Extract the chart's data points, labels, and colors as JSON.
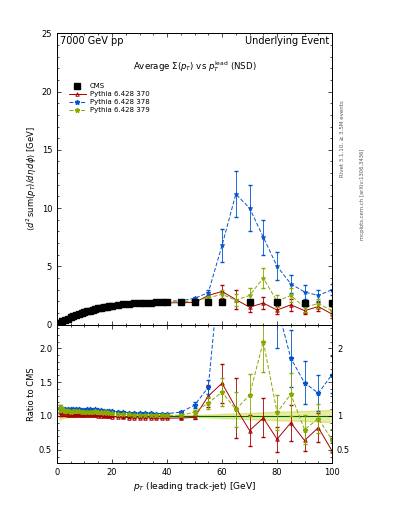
{
  "title_left": "7000 GeV pp",
  "title_right": "Underlying Event",
  "plot_title": "Average $\\Sigma(p_T)$ vs $p_T^{\\mathrm{lead}}$ (NSD)",
  "ylabel_main": "$\\langle d^2\\,\\mathrm{sum}(p_T)/d\\eta\\,d\\phi\\rangle$ [GeV]",
  "ylabel_ratio": "Ratio to CMS",
  "xlabel": "$p_T$ (leading track-jet) [GeV]",
  "rivet_label": "Rivet 3.1.10, ≥ 3.5M events",
  "arxiv_label": "mcplots.cern.ch [arXiv:1306.3436]",
  "ylim_main": [
    0,
    25
  ],
  "ylim_ratio": [
    0.3,
    2.35
  ],
  "yticks_main": [
    0,
    5,
    10,
    15,
    20,
    25
  ],
  "yticks_ratio": [
    0.5,
    1.0,
    1.5,
    2.0
  ],
  "xlim": [
    0,
    100
  ],
  "cms_color": "#000000",
  "py370_color": "#aa0000",
  "py378_color": "#0055cc",
  "py379_color": "#88aa00",
  "band_color": "#bbcc00",
  "band_alpha": 0.35,
  "cms_x": [
    1,
    2,
    3,
    4,
    5,
    6,
    7,
    8,
    9,
    10,
    11,
    12,
    13,
    14,
    15,
    16,
    17,
    18,
    19,
    20,
    22,
    24,
    26,
    28,
    30,
    32,
    34,
    36,
    38,
    40,
    45,
    50,
    55,
    60,
    70,
    80,
    90,
    100
  ],
  "cms_y": [
    0.18,
    0.3,
    0.41,
    0.52,
    0.62,
    0.72,
    0.81,
    0.9,
    0.99,
    1.07,
    1.14,
    1.21,
    1.27,
    1.33,
    1.39,
    1.44,
    1.49,
    1.53,
    1.57,
    1.61,
    1.67,
    1.73,
    1.78,
    1.82,
    1.85,
    1.87,
    1.89,
    1.91,
    1.92,
    1.93,
    1.94,
    1.94,
    1.93,
    1.92,
    1.91,
    1.9,
    1.88,
    1.86
  ],
  "cms_yerr": [
    0.01,
    0.01,
    0.01,
    0.01,
    0.01,
    0.01,
    0.01,
    0.01,
    0.01,
    0.01,
    0.01,
    0.01,
    0.01,
    0.01,
    0.01,
    0.01,
    0.01,
    0.01,
    0.01,
    0.01,
    0.01,
    0.01,
    0.01,
    0.01,
    0.01,
    0.01,
    0.01,
    0.01,
    0.01,
    0.01,
    0.02,
    0.03,
    0.04,
    0.06,
    0.09,
    0.12,
    0.14,
    0.17
  ],
  "py370_x": [
    1,
    2,
    3,
    4,
    5,
    6,
    7,
    8,
    9,
    10,
    11,
    12,
    13,
    14,
    15,
    16,
    17,
    18,
    19,
    20,
    22,
    24,
    26,
    28,
    30,
    32,
    34,
    36,
    38,
    40,
    45,
    50,
    55,
    60,
    65,
    70,
    75,
    80,
    85,
    90,
    95,
    100
  ],
  "py370_y": [
    0.19,
    0.31,
    0.42,
    0.53,
    0.63,
    0.73,
    0.82,
    0.91,
    1.0,
    1.08,
    1.15,
    1.22,
    1.28,
    1.34,
    1.39,
    1.44,
    1.48,
    1.52,
    1.56,
    1.59,
    1.65,
    1.7,
    1.74,
    1.77,
    1.8,
    1.82,
    1.84,
    1.85,
    1.86,
    1.87,
    1.88,
    1.9,
    2.5,
    2.85,
    2.15,
    1.5,
    1.85,
    1.25,
    1.7,
    1.2,
    1.55,
    0.9
  ],
  "py370_yerr": [
    0.01,
    0.01,
    0.01,
    0.01,
    0.01,
    0.01,
    0.01,
    0.01,
    0.01,
    0.01,
    0.01,
    0.01,
    0.01,
    0.01,
    0.01,
    0.01,
    0.01,
    0.01,
    0.01,
    0.01,
    0.01,
    0.01,
    0.01,
    0.01,
    0.01,
    0.01,
    0.01,
    0.01,
    0.01,
    0.01,
    0.03,
    0.06,
    0.3,
    0.55,
    0.85,
    0.45,
    0.55,
    0.35,
    0.5,
    0.3,
    0.4,
    0.35
  ],
  "py378_x": [
    1,
    2,
    3,
    4,
    5,
    6,
    7,
    8,
    9,
    10,
    11,
    12,
    13,
    14,
    15,
    16,
    17,
    18,
    19,
    20,
    22,
    24,
    26,
    28,
    30,
    32,
    34,
    36,
    38,
    40,
    45,
    50,
    55,
    60,
    65,
    70,
    75,
    80,
    85,
    90,
    95,
    100
  ],
  "py378_y": [
    0.2,
    0.33,
    0.45,
    0.57,
    0.68,
    0.79,
    0.89,
    0.99,
    1.08,
    1.17,
    1.25,
    1.33,
    1.39,
    1.46,
    1.51,
    1.56,
    1.61,
    1.65,
    1.69,
    1.72,
    1.78,
    1.83,
    1.87,
    1.9,
    1.93,
    1.95,
    1.97,
    1.98,
    1.99,
    2.0,
    2.05,
    2.25,
    2.75,
    6.8,
    11.2,
    10.0,
    7.5,
    5.0,
    3.5,
    2.8,
    2.5,
    3.0
  ],
  "py378_yerr": [
    0.01,
    0.01,
    0.01,
    0.01,
    0.01,
    0.01,
    0.01,
    0.01,
    0.01,
    0.01,
    0.01,
    0.01,
    0.01,
    0.01,
    0.01,
    0.01,
    0.01,
    0.01,
    0.01,
    0.01,
    0.01,
    0.01,
    0.01,
    0.01,
    0.01,
    0.01,
    0.01,
    0.01,
    0.01,
    0.01,
    0.03,
    0.08,
    0.2,
    1.4,
    2.0,
    2.0,
    1.5,
    1.2,
    0.8,
    0.6,
    0.5,
    0.5
  ],
  "py379_x": [
    1,
    2,
    3,
    4,
    5,
    6,
    7,
    8,
    9,
    10,
    11,
    12,
    13,
    14,
    15,
    16,
    17,
    18,
    19,
    20,
    22,
    24,
    26,
    28,
    30,
    32,
    34,
    36,
    38,
    40,
    45,
    50,
    55,
    60,
    65,
    70,
    75,
    80,
    85,
    90,
    95,
    100
  ],
  "py379_y": [
    0.2,
    0.33,
    0.44,
    0.56,
    0.66,
    0.77,
    0.87,
    0.96,
    1.05,
    1.14,
    1.21,
    1.29,
    1.35,
    1.42,
    1.47,
    1.52,
    1.57,
    1.61,
    1.64,
    1.67,
    1.73,
    1.78,
    1.82,
    1.85,
    1.88,
    1.9,
    1.92,
    1.93,
    1.94,
    1.95,
    1.96,
    2.05,
    2.3,
    2.6,
    2.1,
    2.5,
    4.0,
    2.0,
    2.5,
    1.5,
    1.8,
    1.2
  ],
  "py379_yerr": [
    0.01,
    0.01,
    0.01,
    0.01,
    0.01,
    0.01,
    0.01,
    0.01,
    0.01,
    0.01,
    0.01,
    0.01,
    0.01,
    0.01,
    0.01,
    0.01,
    0.01,
    0.01,
    0.01,
    0.01,
    0.01,
    0.01,
    0.01,
    0.01,
    0.01,
    0.01,
    0.01,
    0.01,
    0.01,
    0.01,
    0.03,
    0.07,
    0.18,
    0.4,
    0.5,
    0.6,
    0.85,
    0.5,
    0.6,
    0.4,
    0.4,
    0.3
  ]
}
